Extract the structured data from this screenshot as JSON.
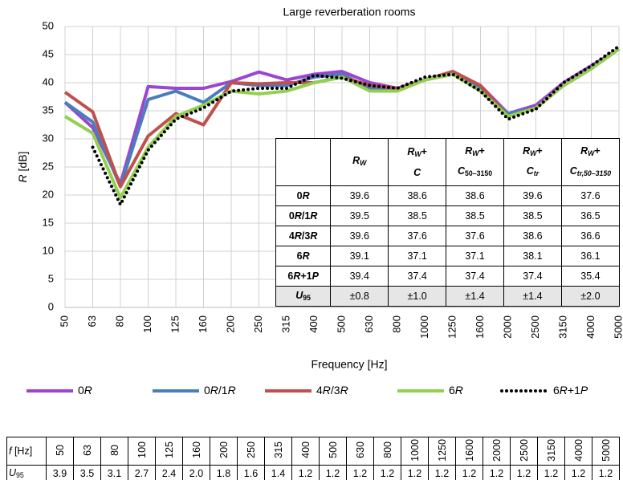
{
  "chart_data": {
    "type": "line",
    "title": "Large reverberation rooms",
    "x_label": "Frequency [Hz]",
    "y_label": [
      {
        "text": "R",
        "italic": true
      },
      {
        "text": " [dB]"
      }
    ],
    "categories": [
      "50",
      "63",
      "80",
      "100",
      "125",
      "160",
      "200",
      "250",
      "315",
      "400",
      "500",
      "630",
      "800",
      "1000",
      "1250",
      "1600",
      "2000",
      "2500",
      "3150",
      "4000",
      "5000"
    ],
    "ylim": [
      0,
      50
    ],
    "yticks": [
      0,
      5,
      10,
      15,
      20,
      25,
      30,
      35,
      40,
      45,
      50
    ],
    "grid": true,
    "series": [
      {
        "name": "0R",
        "color": "#9b45d0",
        "style": "solid",
        "values": [
          36.5,
          32,
          22,
          39.3,
          39,
          39,
          40.2,
          41.9,
          40.5,
          41.5,
          42,
          40,
          39,
          40.5,
          42,
          39.5,
          34.5,
          36,
          40,
          43,
          46
        ]
      },
      {
        "name": "0R/1R",
        "color": "#4a7ebb",
        "style": "solid",
        "values": [
          36.5,
          33,
          21.5,
          37,
          38.5,
          36.5,
          40,
          39.5,
          39.5,
          41,
          41.5,
          39,
          39,
          40.5,
          41.5,
          39,
          34.5,
          35.5,
          39.5,
          42.5,
          46
        ]
      },
      {
        "name": "4R/3R",
        "color": "#c0504d",
        "style": "solid",
        "values": [
          38.3,
          34.8,
          21.5,
          30.5,
          34.5,
          32.5,
          40,
          39.8,
          40,
          40,
          41,
          39.5,
          39,
          40.5,
          42,
          39.5,
          34,
          35.5,
          39.5,
          42.5,
          46
        ]
      },
      {
        "name": "6R",
        "color": "#92d050",
        "style": "solid",
        "values": [
          34,
          31,
          19.5,
          28.5,
          34,
          36,
          38.5,
          38,
          38.5,
          40,
          41,
          38.5,
          38.5,
          40.5,
          41.5,
          38.5,
          34,
          35.5,
          39.5,
          42.5,
          46
        ]
      },
      {
        "name": "6R+1P",
        "color": "#000000",
        "style": "dotted",
        "values": [
          null,
          28.5,
          18.3,
          28,
          33.5,
          35.5,
          38.5,
          39,
          39,
          41.3,
          40.8,
          39.5,
          39,
          41,
          41.5,
          38.5,
          33.5,
          35.3,
          40,
          43,
          46.5
        ]
      }
    ]
  },
  "inset_table": {
    "header": [
      [],
      [
        [
          {
            "text": "R",
            "italic": true
          },
          {
            "text": "W",
            "italic": true,
            "sub": true
          }
        ]
      ],
      [
        [
          {
            "text": "R",
            "italic": true
          },
          {
            "text": "W",
            "italic": true,
            "sub": true
          },
          {
            "text": "+"
          }
        ],
        [
          {
            "text": "C",
            "italic": true
          }
        ]
      ],
      [
        [
          {
            "text": "R",
            "italic": true
          },
          {
            "text": "W",
            "italic": true,
            "sub": true
          },
          {
            "text": "+"
          }
        ],
        [
          {
            "text": "C",
            "italic": true
          },
          {
            "text": "50–3150",
            "sub": true
          }
        ]
      ],
      [
        [
          {
            "text": "R",
            "italic": true
          },
          {
            "text": "W",
            "italic": true,
            "sub": true
          },
          {
            "text": "+"
          }
        ],
        [
          {
            "text": "C",
            "italic": true
          },
          {
            "text": "tr",
            "italic": true,
            "sub": true
          }
        ]
      ],
      [
        [
          {
            "text": "R",
            "italic": true
          },
          {
            "text": "W",
            "italic": true,
            "sub": true
          },
          {
            "text": "+"
          }
        ],
        [
          {
            "text": "C",
            "italic": true
          },
          {
            "text": "tr,50–3150",
            "italic": true,
            "sub": true
          }
        ]
      ]
    ],
    "rows": [
      {
        "label": [
          {
            "text": "0"
          },
          {
            "text": "R",
            "italic": true
          }
        ],
        "values": [
          39.6,
          38.6,
          38.6,
          39.6,
          37.6
        ]
      },
      {
        "label": [
          {
            "text": "0"
          },
          {
            "text": "R",
            "italic": true
          },
          {
            "text": "/1"
          },
          {
            "text": "R",
            "italic": true
          }
        ],
        "values": [
          39.5,
          38.5,
          38.5,
          38.5,
          36.5
        ]
      },
      {
        "label": [
          {
            "text": "4"
          },
          {
            "text": "R",
            "italic": true
          },
          {
            "text": "/3"
          },
          {
            "text": "R",
            "italic": true
          }
        ],
        "values": [
          39.6,
          37.6,
          37.6,
          38.6,
          36.6
        ]
      },
      {
        "label": [
          {
            "text": "6"
          },
          {
            "text": "R",
            "italic": true
          }
        ],
        "values": [
          39.1,
          37.1,
          37.1,
          38.1,
          36.1
        ]
      },
      {
        "label": [
          {
            "text": "6"
          },
          {
            "text": "R",
            "italic": true
          },
          {
            "text": "+1"
          },
          {
            "text": "P",
            "italic": true
          }
        ],
        "values": [
          39.4,
          37.4,
          37.4,
          37.4,
          35.4
        ]
      },
      {
        "label": [
          {
            "text": "U",
            "italic": true
          },
          {
            "text": "95",
            "sub": true
          }
        ],
        "values": [
          "±0.8",
          "±1.0",
          "±1.4",
          "±1.4",
          "±2.0"
        ],
        "shaded": true
      }
    ]
  },
  "bottom_table": {
    "rows": [
      {
        "label": [
          {
            "text": "f",
            "italic": true
          },
          {
            "text": " [Hz]"
          }
        ],
        "rotated": true,
        "cells": [
          "50",
          "63",
          "80",
          "100",
          "125",
          "160",
          "200",
          "250",
          "315",
          "400",
          "500",
          "630",
          "800",
          "1000",
          "1250",
          "1600",
          "2000",
          "2500",
          "3150",
          "4000",
          "5000"
        ]
      },
      {
        "label": [
          {
            "text": "U",
            "italic": true
          },
          {
            "text": "95",
            "sub": true
          }
        ],
        "rotated": false,
        "cells": [
          "3.9",
          "3.5",
          "3.1",
          "2.7",
          "2.4",
          "2.0",
          "1.8",
          "1.6",
          "1.4",
          "1.2",
          "1.2",
          "1.2",
          "1.2",
          "1.2",
          "1.2",
          "1.2",
          "1.2",
          "1.2",
          "1.2",
          "1.2",
          "1.2"
        ]
      }
    ]
  }
}
